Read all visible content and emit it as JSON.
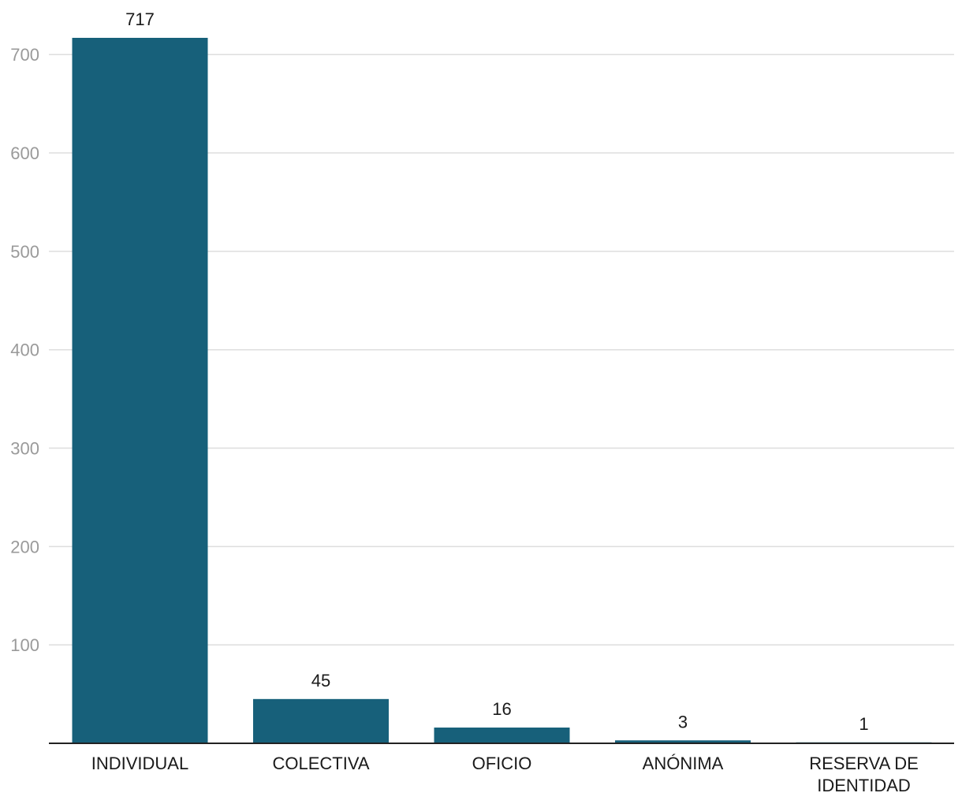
{
  "chart_data": {
    "type": "bar",
    "categories": [
      [
        "INDIVIDUAL"
      ],
      [
        "COLECTIVA"
      ],
      [
        "OFICIO"
      ],
      [
        "ANÓNIMA"
      ],
      [
        "RESERVA DE",
        "IDENTIDAD"
      ]
    ],
    "values": [
      717,
      45,
      16,
      3,
      1
    ],
    "data_labels": [
      "717",
      "45",
      "16",
      "3",
      "1"
    ],
    "yticks": [
      100,
      200,
      300,
      400,
      500,
      600,
      700
    ],
    "ylim": [
      0,
      717
    ],
    "grid": true,
    "legend": "none",
    "colors": {
      "bar": "#17607a",
      "grid": "#dedede",
      "axis": "#222222",
      "ytick_text": "#9a9a9a",
      "label_text": "#1a1a1a"
    }
  }
}
